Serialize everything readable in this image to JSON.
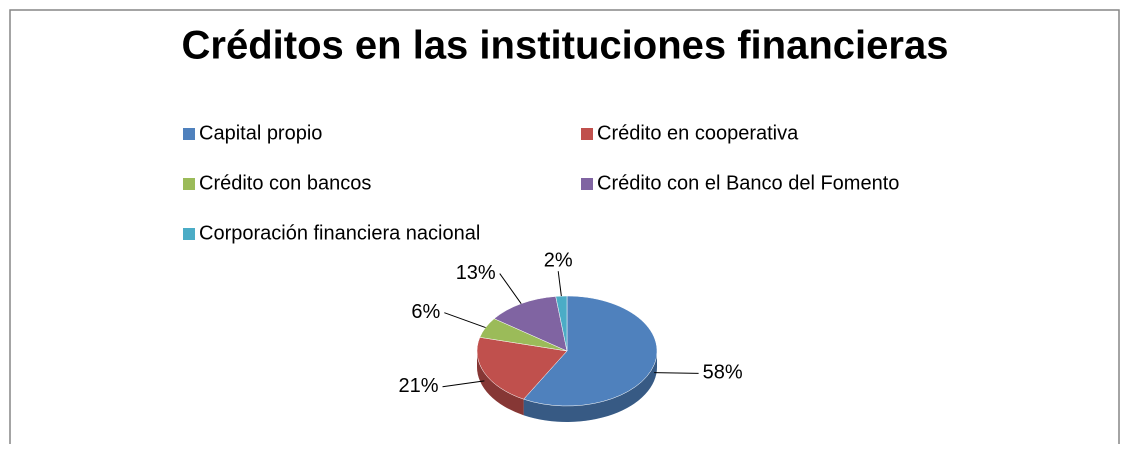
{
  "chart_data": {
    "type": "pie",
    "title": "Créditos en las instituciones financieras",
    "categories": [
      "Capital propio",
      "Crédito en cooperativa",
      "Crédito con bancos",
      "Crédito con el Banco del Fomento",
      "Corporación financiera nacional"
    ],
    "values": [
      58,
      21,
      6,
      13,
      2
    ],
    "value_labels": [
      "58%",
      "21%",
      "6%",
      "13%",
      "2%"
    ],
    "colors": [
      "#4f81bd",
      "#c0504d",
      "#9bbb59",
      "#8064a2",
      "#4bacc6"
    ],
    "legend": "top"
  }
}
